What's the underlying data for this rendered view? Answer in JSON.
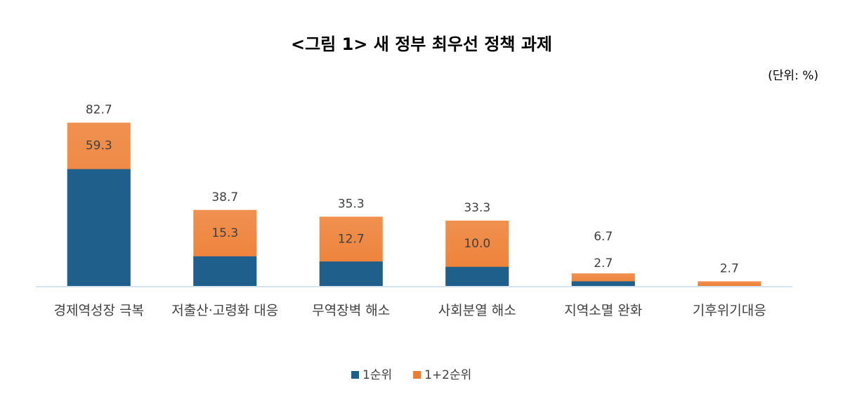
{
  "chart_data": {
    "type": "bar",
    "title": "<그림 1> 새 정부 최우선 정책 과제",
    "unit": "(단위: %)",
    "categories": [
      "경제역성장 극복",
      "저출산·고령화 대응",
      "무역장벽 해소",
      "사회분열 해소",
      "지역소멸 완화",
      "기후위기대응"
    ],
    "series": [
      {
        "name": "1순위",
        "color": "#1f5f8b",
        "values": [
          59.3,
          15.3,
          12.7,
          10.0,
          2.7,
          0
        ]
      },
      {
        "name": "1+2순위",
        "color": "#ed7d31",
        "values": [
          82.7,
          38.7,
          35.3,
          33.3,
          6.7,
          2.7
        ]
      }
    ],
    "value_labels": [
      [
        "59.3",
        "15.3",
        "12.7",
        "10.0",
        "2.7",
        null
      ],
      [
        "82.7",
        "38.7",
        "35.3",
        "33.3",
        "6.7",
        "2.7"
      ]
    ],
    "ylim": [
      0,
      90
    ]
  }
}
